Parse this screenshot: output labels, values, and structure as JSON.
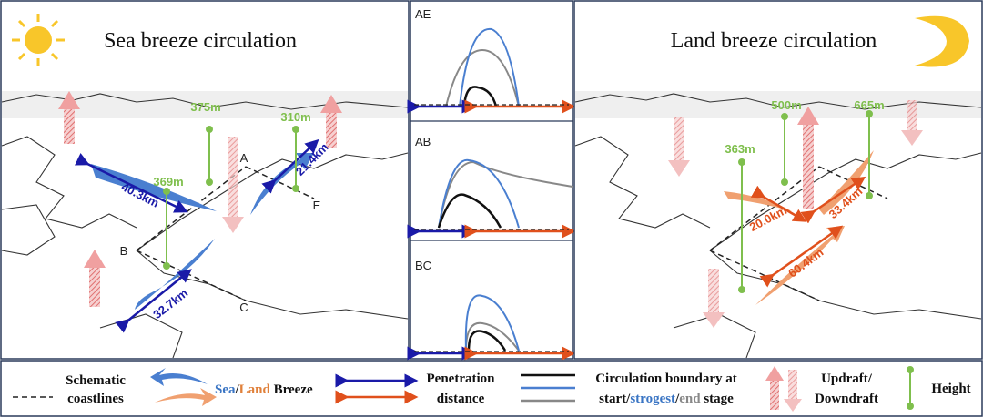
{
  "left_panel": {
    "title": "Sea breeze circulation",
    "heights": [
      "375m",
      "310m",
      "369m"
    ],
    "distances": [
      "40.3km",
      "21.4km",
      "32.7km"
    ],
    "points": [
      "A",
      "B",
      "C",
      "E"
    ]
  },
  "middle_panel": {
    "sections": [
      "AE",
      "AB",
      "BC"
    ]
  },
  "right_panel": {
    "title": "Land breeze circulation",
    "heights": [
      "500m",
      "665m",
      "363m"
    ],
    "distances": [
      "20.0km",
      "33.4km",
      "60.4km"
    ]
  },
  "legend": {
    "coastlines": [
      "Schematic",
      "coastlines"
    ],
    "breeze": {
      "sea": "Sea",
      "sep": "/",
      "land": "Land",
      "label": " Breeze"
    },
    "penetration": [
      "Penetration",
      "distance"
    ],
    "circulation": {
      "line1": "Circulation boundary at",
      "start": "start",
      "sep1": "/",
      "strongest": "strogest",
      "sep2": "/",
      "end": "end",
      "stage": " stage"
    },
    "draft": [
      "Updraft/",
      "Downdraft"
    ],
    "height": "Height"
  }
}
